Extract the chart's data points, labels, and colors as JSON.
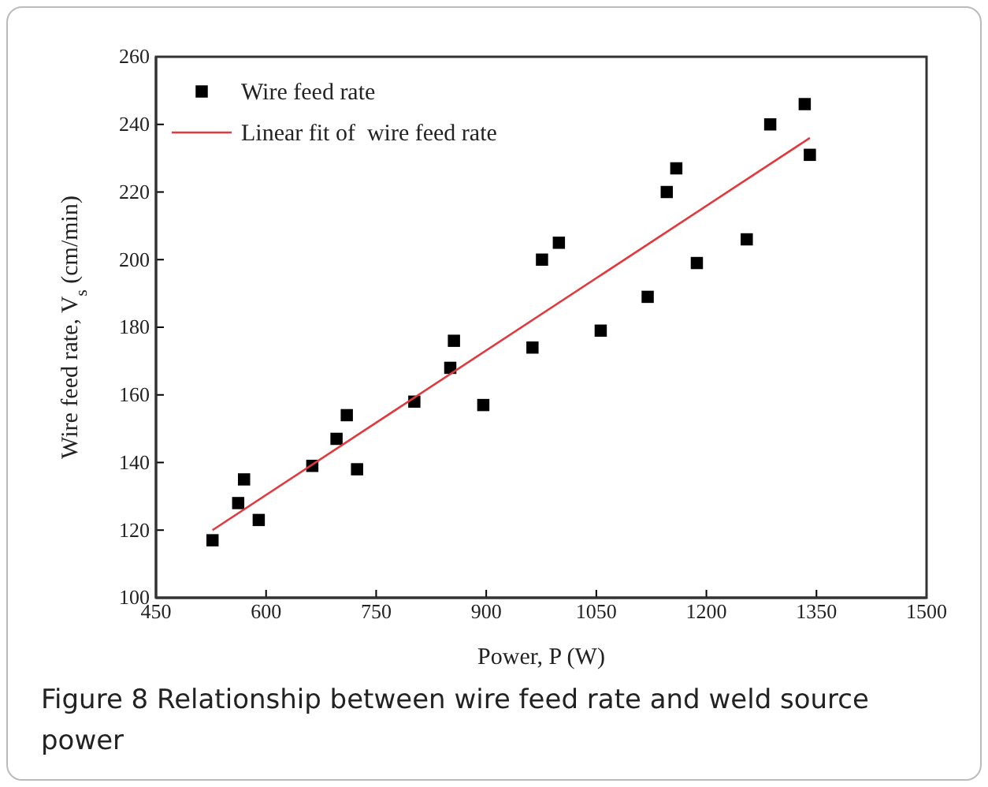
{
  "chart_data": {
    "type": "scatter",
    "xlabel": "Power, P (W)",
    "ylabel": "Wire feed rate, V$_{s}$ (cm/min)",
    "xlim": [
      450,
      1500
    ],
    "xticks": [
      450,
      600,
      750,
      900,
      1050,
      1200,
      1350,
      1500
    ],
    "ylim": [
      100,
      260
    ],
    "yticks": [
      100,
      120,
      140,
      160,
      180,
      200,
      220,
      240,
      260
    ],
    "grid": false,
    "legend": "top left",
    "series": [
      {
        "name": "Wire feed rate",
        "color": "#000000",
        "marker": "square",
        "x": [
          527,
          562,
          570,
          590,
          663,
          696,
          710,
          724,
          802,
          851,
          856,
          896,
          963,
          976,
          999,
          1056,
          1120,
          1146,
          1159,
          1187,
          1255,
          1287,
          1334,
          1341
        ],
        "values": [
          117,
          128,
          135,
          123,
          139,
          147,
          154,
          138,
          158,
          168,
          176,
          157,
          174,
          200,
          205,
          179,
          189,
          220,
          227,
          199,
          206,
          240,
          246,
          231
        ]
      },
      {
        "name": "Linear fit of  wire feed rate",
        "type": "line",
        "color": "#e0393e",
        "marker": "none",
        "line_style": "solid",
        "x": [
          527,
          1341
        ],
        "values": [
          120,
          236
        ]
      }
    ],
    "annotations": [
      "Figure 8  Relationship between wire feed rate and weld source power"
    ]
  }
}
